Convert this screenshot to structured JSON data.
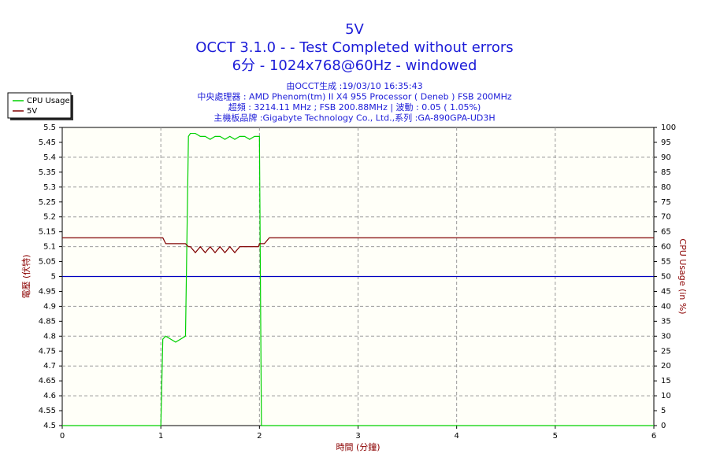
{
  "chart_data": {
    "type": "line",
    "title_lines": [
      "5V",
      "OCCT 3.1.0 -  - Test Completed without errors",
      "6分 - 1024x768@60Hz - windowed"
    ],
    "info_lines": [
      "由OCCT生成 :19/03/10 16:35:43",
      "中央處理器 : AMD Phenom(tm) II X4 955 Processor ( Deneb ) FSB 200MHz",
      "超頻 : 3214.11 MHz ; FSB 200.88MHz | 波動 : 0.05 ( 1.05%)",
      "主機板品牌 :Gigabyte Technology Co., Ltd.,系列 :GA-890GPA-UD3H"
    ],
    "x_label": "時間 (分鐘)",
    "y_label": "電壓 (伏特)",
    "y2_label": "CPU Usage (in %)",
    "x": [
      0,
      0.5,
      1.0,
      1.02,
      1.05,
      1.1,
      1.15,
      1.2,
      1.25,
      1.28,
      1.3,
      1.35,
      1.4,
      1.45,
      1.5,
      1.55,
      1.6,
      1.65,
      1.7,
      1.75,
      1.8,
      1.85,
      1.9,
      1.95,
      1.99,
      2.0,
      2.02,
      2.05,
      2.1,
      3,
      4,
      5,
      6
    ],
    "series": [
      {
        "name": "CPU Usage",
        "color": "#00d000",
        "axis": "y2",
        "values": [
          0,
          0,
          0,
          29,
          30,
          29,
          28,
          29,
          30,
          97,
          98,
          98,
          97,
          97,
          96,
          97,
          97,
          96,
          97,
          96,
          97,
          97,
          96,
          97,
          97,
          97,
          0,
          0,
          0,
          0,
          0,
          0,
          0
        ]
      },
      {
        "name": "5V",
        "color": "#800000",
        "values": [
          5.13,
          5.13,
          5.13,
          5.13,
          5.11,
          5.11,
          5.11,
          5.11,
          5.11,
          5.1,
          5.1,
          5.08,
          5.1,
          5.08,
          5.1,
          5.08,
          5.1,
          5.08,
          5.1,
          5.08,
          5.1,
          5.1,
          5.1,
          5.1,
          5.1,
          5.11,
          5.11,
          5.11,
          5.13,
          5.13,
          5.13,
          5.13,
          5.13
        ]
      }
    ],
    "reference_line": {
      "value": 5,
      "color": "#0000c0"
    },
    "xlim": [
      0,
      6
    ],
    "xticks": [
      0,
      1,
      2,
      3,
      4,
      5,
      6
    ],
    "ylim": [
      4.5,
      5.5
    ],
    "yticks": [
      4.5,
      4.55,
      4.6,
      4.65,
      4.7,
      4.75,
      4.8,
      4.85,
      4.9,
      4.95,
      5,
      5.05,
      5.1,
      5.15,
      5.2,
      5.25,
      5.3,
      5.35,
      5.4,
      5.45,
      5.5
    ],
    "y2lim": [
      0,
      100
    ],
    "y2ticks": [
      0,
      5,
      10,
      15,
      20,
      25,
      30,
      35,
      40,
      45,
      50,
      55,
      60,
      65,
      70,
      75,
      80,
      85,
      90,
      95,
      100
    ],
    "grid": true,
    "legend": "top-left"
  }
}
